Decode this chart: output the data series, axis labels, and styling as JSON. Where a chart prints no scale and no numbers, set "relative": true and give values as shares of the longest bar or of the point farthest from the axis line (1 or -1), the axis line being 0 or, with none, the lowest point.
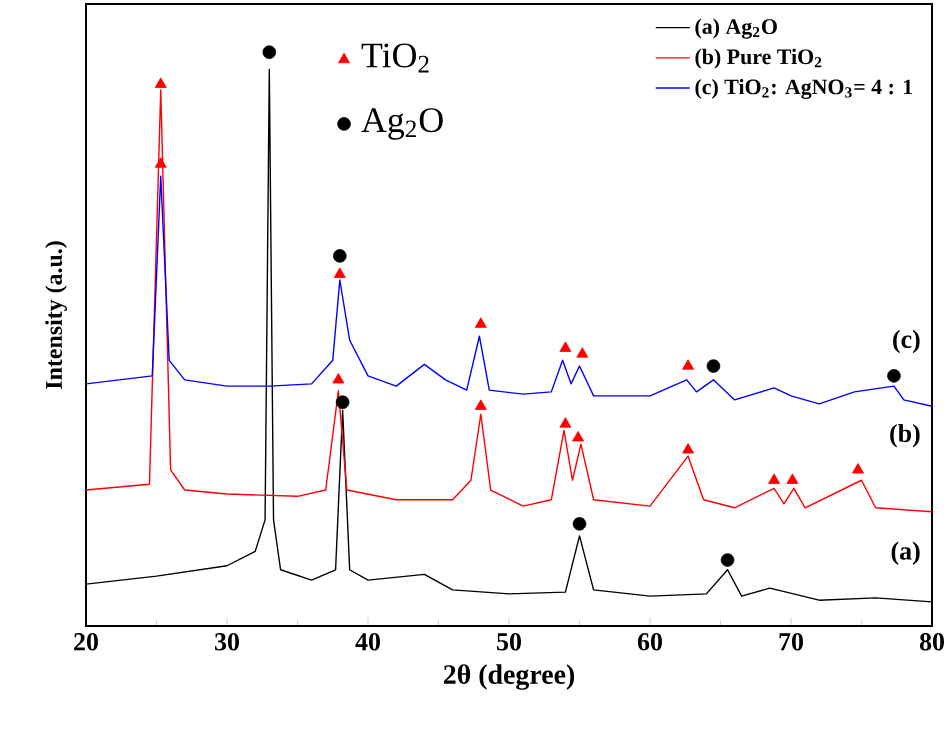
{
  "chart_data": {
    "type": "line",
    "xlabel": "2θ (degree)",
    "ylabel": "Intensity (a.u.)",
    "relative": true,
    "xlim": [
      20,
      80
    ],
    "xticks": [
      20,
      30,
      40,
      50,
      60,
      70,
      80
    ],
    "legend": "top right",
    "series": [
      {
        "name": "(a) Ag$_{2}$O",
        "color": "#000000",
        "x": [
          20,
          25,
          30,
          32,
          32.7,
          33.0,
          33.3,
          33.8,
          36,
          37.7,
          38.2,
          38.7,
          40,
          44,
          46,
          50,
          54,
          55.0,
          56,
          60,
          64,
          65.5,
          66.5,
          68.5,
          72,
          76,
          80
        ],
        "values": [
          0.073,
          0.087,
          0.105,
          0.13,
          0.185,
          0.97,
          0.185,
          0.098,
          0.08,
          0.098,
          0.376,
          0.098,
          0.08,
          0.09,
          0.063,
          0.056,
          0.059,
          0.157,
          0.063,
          0.052,
          0.056,
          0.098,
          0.052,
          0.066,
          0.045,
          0.049,
          0.042
        ]
      },
      {
        "name": "(b) Pure TiO$_{2}$",
        "color": "#ff0000",
        "x": [
          20,
          24.5,
          25.3,
          26,
          27,
          30,
          35,
          37,
          37.9,
          38.5,
          42,
          46,
          47.3,
          48.0,
          48.7,
          51,
          53,
          53.9,
          54.5,
          55.1,
          56,
          60,
          62.7,
          63.8,
          66,
          68.8,
          69.5,
          70.2,
          71,
          75.0,
          76,
          80
        ],
        "values": [
          0.237,
          0.247,
          0.934,
          0.272,
          0.237,
          0.23,
          0.226,
          0.237,
          0.41,
          0.237,
          0.22,
          0.22,
          0.254,
          0.369,
          0.237,
          0.209,
          0.22,
          0.341,
          0.254,
          0.317,
          0.22,
          0.209,
          0.296,
          0.22,
          0.206,
          0.24,
          0.213,
          0.24,
          0.206,
          0.254,
          0.206,
          0.199
        ]
      },
      {
        "name": "(c) TiO$_{2}$: AgNO$_{3}$= 4 : 1",
        "color": "#0000ff",
        "x": [
          20,
          24.7,
          25.3,
          25.9,
          27,
          30,
          33,
          36,
          37.5,
          38.0,
          38.7,
          40,
          42,
          44,
          45.5,
          47,
          47.9,
          48.6,
          51,
          53,
          53.8,
          54.4,
          55.0,
          56,
          60,
          62.6,
          63.3,
          64.5,
          66,
          68.8,
          70,
          72,
          74.5,
          77.3,
          78,
          80
        ],
        "values": [
          0.422,
          0.436,
          0.784,
          0.463,
          0.429,
          0.418,
          0.418,
          0.422,
          0.463,
          0.603,
          0.498,
          0.436,
          0.418,
          0.456,
          0.429,
          0.411,
          0.505,
          0.411,
          0.404,
          0.408,
          0.463,
          0.422,
          0.453,
          0.401,
          0.401,
          0.429,
          0.408,
          0.429,
          0.394,
          0.415,
          0.401,
          0.387,
          0.408,
          0.418,
          0.394,
          0.383
        ]
      },
      {
        "name": "TiO$_{2}$",
        "type": "scatter",
        "marker": "triangle",
        "color": "#ff0000",
        "x": [
          25.3,
          25.3,
          38.0,
          37.9,
          48.0,
          48.0,
          54.0,
          55.2,
          54.0,
          54.9,
          62.7,
          62.7,
          68.8,
          70.1,
          74.75
        ],
        "values": [
          0.944,
          0.805,
          0.613,
          0.429,
          0.526,
          0.383,
          0.484,
          0.474,
          0.352,
          0.328,
          0.307,
          0.453,
          0.254,
          0.254,
          0.272
        ]
      },
      {
        "name": "Ag$_{2}$O",
        "type": "scatter",
        "marker": "circle",
        "color": "#000000",
        "x": [
          33.0,
          38.0,
          38.2,
          55.0,
          65.5,
          64.5,
          77.3
        ],
        "values": [
          1.0,
          0.645,
          0.39,
          0.178,
          0.115,
          0.453,
          0.436
        ]
      }
    ],
    "annotations": [
      "(c)",
      "(b)",
      "(a)"
    ]
  }
}
